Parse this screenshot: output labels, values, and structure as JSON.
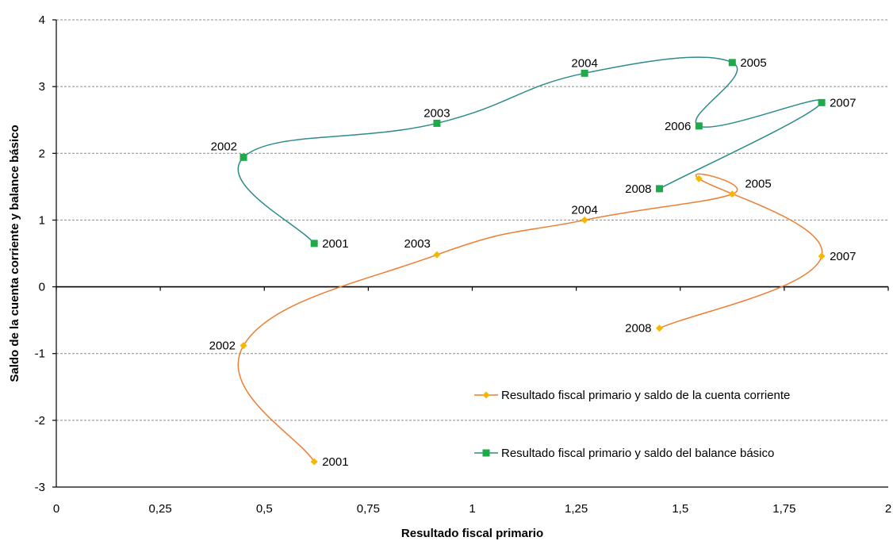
{
  "chart_data": {
    "type": "scatter",
    "title": "",
    "xlabel": "Resultado fiscal primario",
    "ylabel": "Saldo de la cuenta corriente y balance básico",
    "xlim": [
      0,
      2
    ],
    "ylim": [
      -3,
      4
    ],
    "x_ticks": [
      {
        "value": 0,
        "label": "0"
      },
      {
        "value": 0.25,
        "label": "0,25"
      },
      {
        "value": 0.5,
        "label": "0,5"
      },
      {
        "value": 0.75,
        "label": "0,75"
      },
      {
        "value": 1,
        "label": "1"
      },
      {
        "value": 1.25,
        "label": "1,25"
      },
      {
        "value": 1.5,
        "label": "1,5"
      },
      {
        "value": 1.75,
        "label": "1,75"
      },
      {
        "value": 2,
        "label": "2"
      }
    ],
    "y_ticks": [
      {
        "value": -3,
        "label": "-3"
      },
      {
        "value": -2,
        "label": "-2"
      },
      {
        "value": -1,
        "label": "-1"
      },
      {
        "value": 0,
        "label": "0"
      },
      {
        "value": 1,
        "label": "1"
      },
      {
        "value": 2,
        "label": "2"
      },
      {
        "value": 3,
        "label": "3"
      },
      {
        "value": 4,
        "label": "4"
      }
    ],
    "grid": true,
    "legend_position": "lower-right",
    "series": [
      {
        "name": "Resultado fiscal primario y saldo de la cuenta corriente",
        "color": "#ED7D31",
        "marker_color": "#F5B800",
        "marker": "diamond",
        "points": [
          {
            "label": "2001",
            "x": 0.62,
            "y": -2.62,
            "label_pos": "right"
          },
          {
            "label": "2002",
            "x": 0.45,
            "y": -0.88,
            "label_pos": "left"
          },
          {
            "label": "2003",
            "x": 0.915,
            "y": 0.48,
            "label_pos": "above-left"
          },
          {
            "label": "2004",
            "x": 1.27,
            "y": 1.0,
            "label_pos": "above"
          },
          {
            "label": "2005",
            "x": 1.625,
            "y": 1.39,
            "label_pos": "above-right"
          },
          {
            "label": "2006",
            "x": 1.545,
            "y": 1.62,
            "label_pos": "none"
          },
          {
            "label": "2007",
            "x": 1.84,
            "y": 0.46,
            "label_pos": "right"
          },
          {
            "label": "2008",
            "x": 1.45,
            "y": -0.62,
            "label_pos": "left"
          }
        ]
      },
      {
        "name": "Resultado fiscal primario y saldo del balance básico",
        "color": "#2E8B8B",
        "marker_color": "#1FAA4A",
        "marker": "square",
        "points": [
          {
            "label": "2001",
            "x": 0.62,
            "y": 0.65,
            "label_pos": "right"
          },
          {
            "label": "2002",
            "x": 0.45,
            "y": 1.94,
            "label_pos": "above-left"
          },
          {
            "label": "2003",
            "x": 0.915,
            "y": 2.45,
            "label_pos": "above"
          },
          {
            "label": "2004",
            "x": 1.27,
            "y": 3.2,
            "label_pos": "above"
          },
          {
            "label": "2005",
            "x": 1.625,
            "y": 3.36,
            "label_pos": "right"
          },
          {
            "label": "2006",
            "x": 1.545,
            "y": 2.41,
            "label_pos": "left"
          },
          {
            "label": "2007",
            "x": 1.84,
            "y": 2.76,
            "label_pos": "right"
          },
          {
            "label": "2008",
            "x": 1.45,
            "y": 1.47,
            "label_pos": "left"
          }
        ]
      }
    ]
  }
}
